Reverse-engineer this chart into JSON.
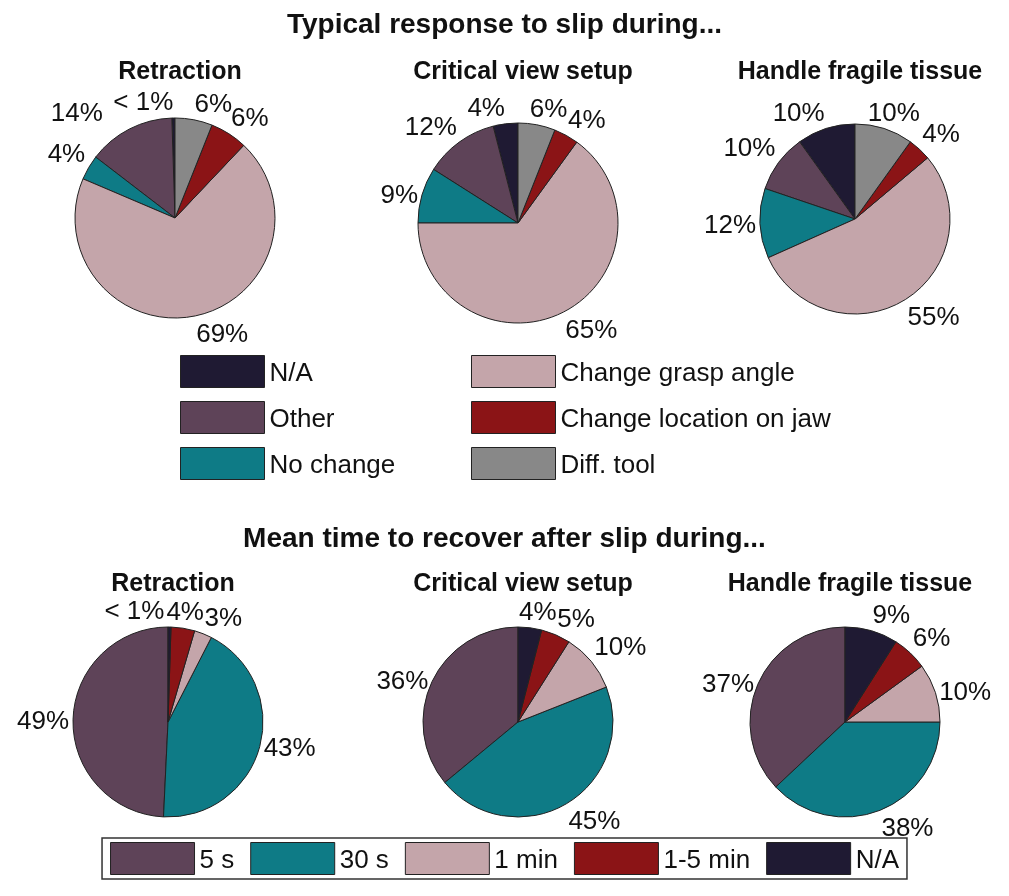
{
  "chart_data": [
    {
      "type": "pie",
      "title": "Typical response to slip during...",
      "legend": "bottom",
      "categories": [
        "N/A",
        "Other",
        "No change",
        "Change grasp angle",
        "Change location on jaw",
        "Diff. tool"
      ],
      "colors": [
        "#1f1a33",
        "#5e4358",
        "#0e7b86",
        "#c4a5aa",
        "#8b1416",
        "#888888"
      ],
      "series": [
        {
          "name": "Retraction",
          "values": [
            0.5,
            14,
            4,
            69,
            6,
            6
          ],
          "value_labels": [
            "< 1%",
            "14%",
            "4%",
            "69%",
            "6%",
            "6%"
          ]
        },
        {
          "name": "Critical view setup",
          "values": [
            4,
            12,
            9,
            65,
            4,
            6
          ],
          "value_labels": [
            "4%",
            "12%",
            "9%",
            "65%",
            "4%",
            "6%"
          ]
        },
        {
          "name": "Handle fragile tissue",
          "values": [
            10,
            10,
            12,
            55,
            4,
            10
          ],
          "value_labels": [
            "10%",
            "10%",
            "12%",
            "55%",
            "4%",
            "10%"
          ]
        }
      ]
    },
    {
      "type": "pie",
      "title": "Mean time to recover after slip during...",
      "legend": "bottom",
      "categories": [
        "5 s",
        "30 s",
        "1 min",
        "1-5 min",
        "N/A"
      ],
      "colors": [
        "#5e4358",
        "#0e7b86",
        "#c4a5aa",
        "#8b1416",
        "#1f1a33"
      ],
      "series": [
        {
          "name": "Retraction",
          "values": [
            49,
            43,
            3,
            4,
            0.5
          ],
          "value_labels": [
            "49%",
            "43%",
            "3%",
            "4%",
            "< 1%"
          ]
        },
        {
          "name": "Critical view setup",
          "values": [
            36,
            45,
            10,
            5,
            4
          ],
          "value_labels": [
            "36%",
            "45%",
            "10%",
            "5%",
            "4%"
          ]
        },
        {
          "name": "Handle fragile tissue",
          "values": [
            37,
            38,
            10,
            6,
            9
          ],
          "value_labels": [
            "37%",
            "38%",
            "10%",
            "6%",
            "9%"
          ]
        }
      ]
    }
  ]
}
